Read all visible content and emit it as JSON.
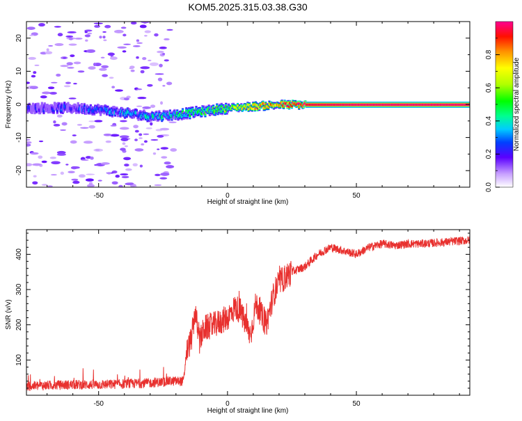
{
  "figure": {
    "title": "KOM5.2025.315.03.38.G30"
  },
  "chart_data": [
    {
      "type": "heatmap",
      "id": "spectrogram",
      "title": "KOM5.2025.315.03.38.G30",
      "xlabel": "Height of straight line (km)",
      "ylabel": "Frequency (Hz)",
      "xlim": [
        -78,
        94
      ],
      "ylim": [
        -25,
        25
      ],
      "xticks": [
        -50,
        0,
        50
      ],
      "yticks": [
        -20,
        -10,
        0,
        10,
        20
      ],
      "colorbar": {
        "label": "Normalized spectral amplitude",
        "range": [
          0,
          1
        ],
        "ticks": [
          0.0,
          0.2,
          0.4,
          0.6,
          0.8
        ]
      },
      "signal_trace": [
        {
          "x": -70,
          "freq": -1.0,
          "amp": 0.15
        },
        {
          "x": -60,
          "freq": -1.0,
          "amp": 0.18
        },
        {
          "x": -50,
          "freq": -1.5,
          "amp": 0.22
        },
        {
          "x": -40,
          "freq": -2.5,
          "amp": 0.3
        },
        {
          "x": -30,
          "freq": -3.5,
          "amp": 0.35
        },
        {
          "x": -20,
          "freq": -3.0,
          "amp": 0.4
        },
        {
          "x": -10,
          "freq": -2.0,
          "amp": 0.45
        },
        {
          "x": 0,
          "freq": -1.0,
          "amp": 0.55
        },
        {
          "x": 10,
          "freq": -0.5,
          "amp": 0.75
        },
        {
          "x": 20,
          "freq": 0.0,
          "amp": 0.85
        },
        {
          "x": 30,
          "freq": 0.0,
          "amp": 0.95
        },
        {
          "x": 50,
          "freq": 0.0,
          "amp": 0.98
        },
        {
          "x": 70,
          "freq": 0.0,
          "amp": 0.98
        },
        {
          "x": 94,
          "freq": 0.0,
          "amp": 0.98
        }
      ]
    },
    {
      "type": "line",
      "id": "snr",
      "xlabel": "Height of straight line (km)",
      "ylabel": "SNR (v/v)",
      "xlim": [
        -78,
        94
      ],
      "ylim": [
        0,
        470
      ],
      "xticks": [
        -50,
        0,
        50
      ],
      "yticks": [
        100,
        200,
        300,
        400
      ],
      "series": [
        {
          "name": "SNR",
          "color": "#e8302e",
          "x": [
            -78,
            -70,
            -60,
            -50,
            -40,
            -30,
            -22,
            -17,
            -16,
            -14,
            -12.5,
            -11,
            -9,
            -5,
            0,
            3,
            5,
            7,
            9,
            11,
            13,
            15,
            18,
            20,
            25,
            30,
            35,
            40,
            45,
            50,
            55,
            60,
            65,
            70,
            75,
            80,
            85,
            90,
            94
          ],
          "y": [
            25,
            28,
            30,
            30,
            32,
            35,
            40,
            40,
            120,
            160,
            240,
            150,
            190,
            200,
            220,
            250,
            240,
            200,
            170,
            260,
            230,
            200,
            290,
            320,
            350,
            365,
            400,
            420,
            410,
            400,
            420,
            430,
            425,
            430,
            430,
            432,
            435,
            438,
            440
          ]
        }
      ]
    }
  ]
}
